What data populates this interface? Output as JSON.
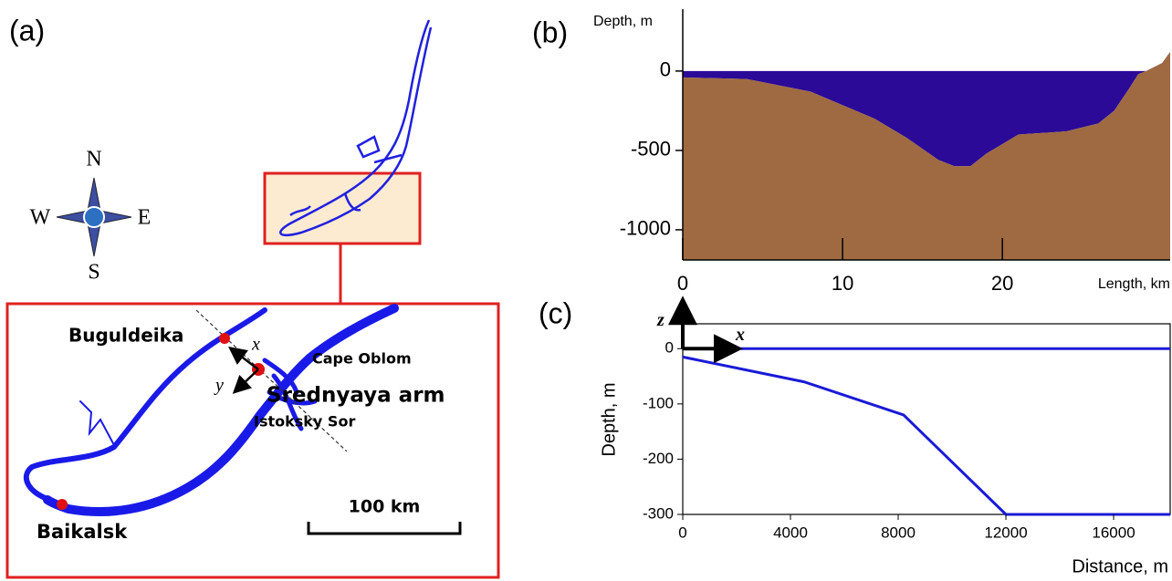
{
  "map": {
    "panel_label": "(a)",
    "compass": {
      "north": "N",
      "east": "E",
      "south": "S",
      "west": "W"
    },
    "places": [
      "Buguldeika",
      "Cape Oblom",
      "Srednyaya arm",
      "Istoksky Sor",
      "Baikalsk"
    ],
    "axes": [
      "x",
      "y"
    ],
    "scale_label": "100 km"
  },
  "chart_data": [
    {
      "type": "area",
      "panel_label": "(b)",
      "y_label": "Depth, m",
      "x_label": "Length, km",
      "x": [
        0,
        4,
        8,
        12,
        14,
        16,
        17,
        18,
        19,
        20,
        21,
        24,
        26,
        27,
        28,
        28.5,
        29,
        30,
        30.5
      ],
      "values": [
        -40,
        -50,
        -130,
        -300,
        -420,
        -560,
        -600,
        -600,
        -520,
        -460,
        -400,
        -380,
        -330,
        -250,
        -100,
        -20,
        0,
        50,
        120
      ],
      "xlim": [
        0,
        30.5
      ],
      "ylim": [
        -1190,
        390
      ],
      "xticks": [
        0,
        10,
        20
      ],
      "yticks": [
        0,
        -500,
        -1000
      ],
      "water_color": "#2b0a98",
      "ground_color": "#9f6a41",
      "grid": false
    },
    {
      "type": "line",
      "panel_label": "(c)",
      "y_label": "Depth, m",
      "x_label": "Distance, m",
      "annotations": [
        "z",
        "x"
      ],
      "series": [
        {
          "x": [
            0,
            18100
          ],
          "values": [
            0,
            0
          ],
          "color": "#1a1ad6"
        },
        {
          "x": [
            0,
            4500,
            8200,
            12000,
            18100
          ],
          "values": [
            -15,
            -60,
            -120,
            -300,
            -300
          ],
          "color": "#1a1ad6"
        }
      ],
      "xlim": [
        0,
        18100
      ],
      "ylim": [
        -300,
        45
      ],
      "xticks": [
        0,
        4000,
        8000,
        12000,
        16000
      ],
      "yticks": [
        0,
        -100,
        -200,
        -300
      ],
      "grid": false
    }
  ]
}
